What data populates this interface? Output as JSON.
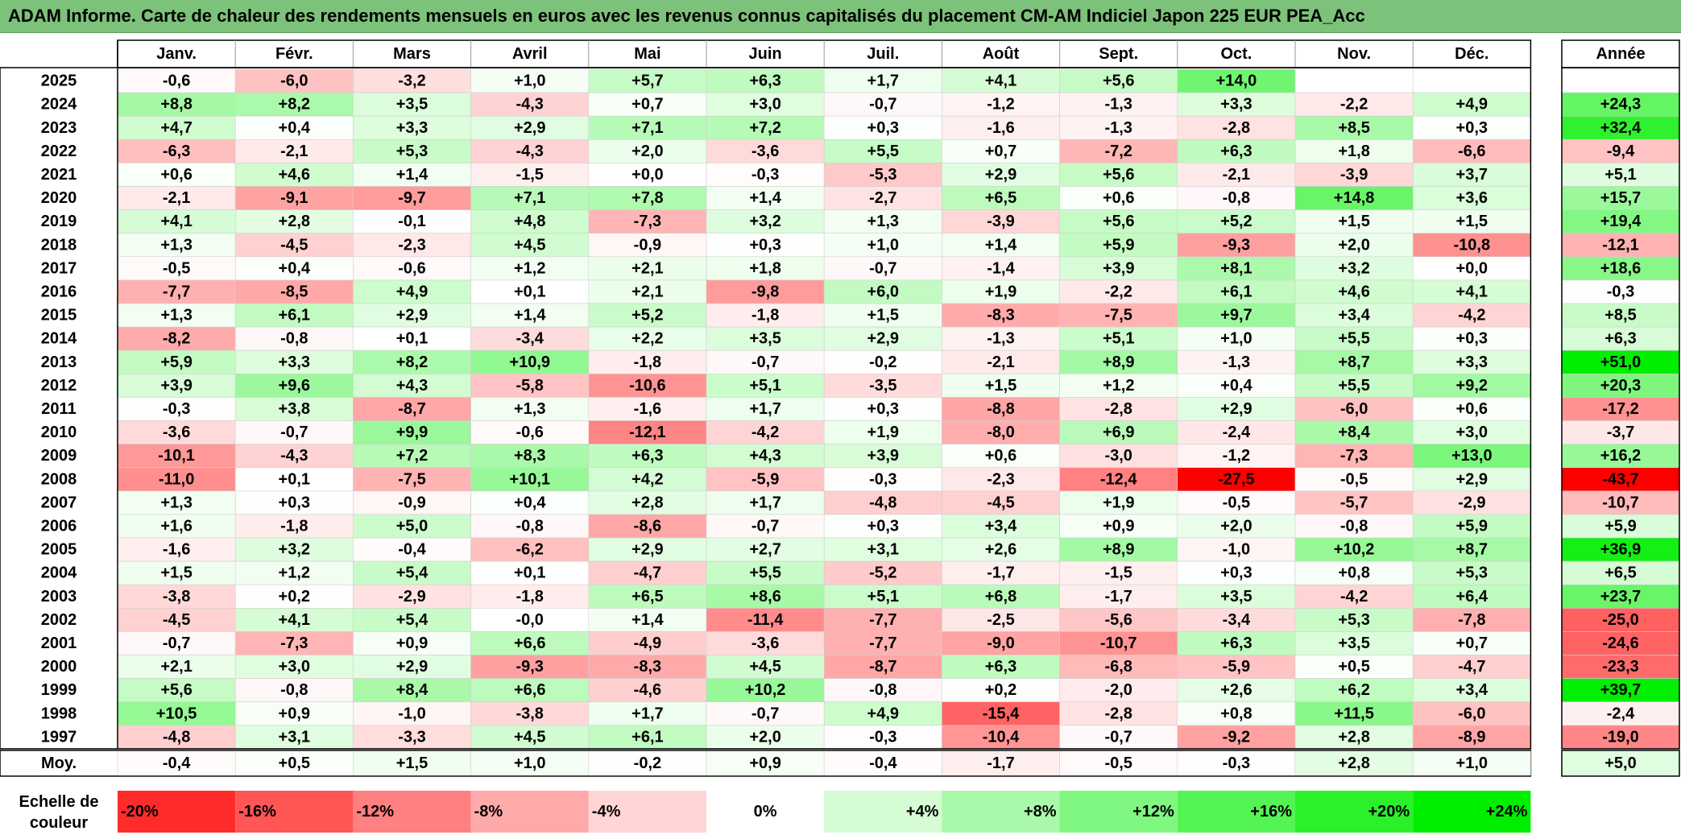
{
  "title": "ADAM Informe. Carte de chaleur des rendements mensuels en euros avec les revenus connus capitalisés du placement CM-AM Indiciel Japon 225 EUR PEA_Acc",
  "chart_data": {
    "type": "heatmap",
    "months": [
      "Janv.",
      "Févr.",
      "Mars",
      "Avril",
      "Mai",
      "Juin",
      "Juil.",
      "Août",
      "Sept.",
      "Oct.",
      "Nov.",
      "Déc."
    ],
    "annual_label": "Année",
    "rows": [
      {
        "year": "2025",
        "values": [
          "-0,6",
          "-6,0",
          "-3,2",
          "+1,0",
          "+5,7",
          "+6,3",
          "+1,7",
          "+4,1",
          "+5,6",
          "+14,0",
          "",
          ""
        ],
        "annual": ""
      },
      {
        "year": "2024",
        "values": [
          "+8,8",
          "+8,2",
          "+3,5",
          "-4,3",
          "+0,7",
          "+3,0",
          "-0,7",
          "-1,2",
          "-1,3",
          "+3,3",
          "-2,2",
          "+4,9"
        ],
        "annual": "+24,3"
      },
      {
        "year": "2023",
        "values": [
          "+4,7",
          "+0,4",
          "+3,3",
          "+2,9",
          "+7,1",
          "+7,2",
          "+0,3",
          "-1,6",
          "-1,3",
          "-2,8",
          "+8,5",
          "+0,3"
        ],
        "annual": "+32,4"
      },
      {
        "year": "2022",
        "values": [
          "-6,3",
          "-2,1",
          "+5,3",
          "-4,3",
          "+2,0",
          "-3,6",
          "+5,5",
          "+0,7",
          "-7,2",
          "+6,3",
          "+1,8",
          "-6,6"
        ],
        "annual": "-9,4"
      },
      {
        "year": "2021",
        "values": [
          "+0,6",
          "+4,6",
          "+1,4",
          "-1,5",
          "+0,0",
          "-0,3",
          "-5,3",
          "+2,9",
          "+5,6",
          "-2,1",
          "-3,9",
          "+3,7"
        ],
        "annual": "+5,1"
      },
      {
        "year": "2020",
        "values": [
          "-2,1",
          "-9,1",
          "-9,7",
          "+7,1",
          "+7,8",
          "+1,4",
          "-2,7",
          "+6,5",
          "+0,6",
          "-0,8",
          "+14,8",
          "+3,6"
        ],
        "annual": "+15,7"
      },
      {
        "year": "2019",
        "values": [
          "+4,1",
          "+2,8",
          "-0,1",
          "+4,8",
          "-7,3",
          "+3,2",
          "+1,3",
          "-3,9",
          "+5,6",
          "+5,2",
          "+1,5",
          "+1,5"
        ],
        "annual": "+19,4"
      },
      {
        "year": "2018",
        "values": [
          "+1,3",
          "-4,5",
          "-2,3",
          "+4,5",
          "-0,9",
          "+0,3",
          "+1,0",
          "+1,4",
          "+5,9",
          "-9,3",
          "+2,0",
          "-10,8"
        ],
        "annual": "-12,1"
      },
      {
        "year": "2017",
        "values": [
          "-0,5",
          "+0,4",
          "-0,6",
          "+1,2",
          "+2,1",
          "+1,8",
          "-0,7",
          "-1,4",
          "+3,9",
          "+8,1",
          "+3,2",
          "+0,0"
        ],
        "annual": "+18,6"
      },
      {
        "year": "2016",
        "values": [
          "-7,7",
          "-8,5",
          "+4,9",
          "+0,1",
          "+2,1",
          "-9,8",
          "+6,0",
          "+1,9",
          "-2,2",
          "+6,1",
          "+4,6",
          "+4,1"
        ],
        "annual": "-0,3"
      },
      {
        "year": "2015",
        "values": [
          "+1,3",
          "+6,1",
          "+2,9",
          "+1,4",
          "+5,2",
          "-1,8",
          "+1,5",
          "-8,3",
          "-7,5",
          "+9,7",
          "+3,4",
          "-4,2"
        ],
        "annual": "+8,5"
      },
      {
        "year": "2014",
        "values": [
          "-8,2",
          "-0,8",
          "+0,1",
          "-3,4",
          "+2,2",
          "+3,5",
          "+2,9",
          "-1,3",
          "+5,1",
          "+1,0",
          "+5,5",
          "+0,3"
        ],
        "annual": "+6,3"
      },
      {
        "year": "2013",
        "values": [
          "+5,9",
          "+3,3",
          "+8,2",
          "+10,9",
          "-1,8",
          "-0,7",
          "-0,2",
          "-2,1",
          "+8,9",
          "-1,3",
          "+8,7",
          "+3,3"
        ],
        "annual": "+51,0"
      },
      {
        "year": "2012",
        "values": [
          "+3,9",
          "+9,6",
          "+4,3",
          "-5,8",
          "-10,6",
          "+5,1",
          "-3,5",
          "+1,5",
          "+1,2",
          "+0,4",
          "+5,5",
          "+9,2"
        ],
        "annual": "+20,3"
      },
      {
        "year": "2011",
        "values": [
          "-0,3",
          "+3,8",
          "-8,7",
          "+1,3",
          "-1,6",
          "+1,7",
          "+0,3",
          "-8,8",
          "-2,8",
          "+2,9",
          "-6,0",
          "+0,6"
        ],
        "annual": "-17,2"
      },
      {
        "year": "2010",
        "values": [
          "-3,6",
          "-0,7",
          "+9,9",
          "-0,6",
          "-12,1",
          "-4,2",
          "+1,9",
          "-8,0",
          "+6,9",
          "-2,4",
          "+8,4",
          "+3,0"
        ],
        "annual": "-3,7"
      },
      {
        "year": "2009",
        "values": [
          "-10,1",
          "-4,3",
          "+7,2",
          "+8,3",
          "+6,3",
          "+4,3",
          "+3,9",
          "+0,6",
          "-3,0",
          "-1,2",
          "-7,3",
          "+13,0"
        ],
        "annual": "+16,2"
      },
      {
        "year": "2008",
        "values": [
          "-11,0",
          "+0,1",
          "-7,5",
          "+10,1",
          "+4,2",
          "-5,9",
          "-0,3",
          "-2,3",
          "-12,4",
          "-27,5",
          "-0,5",
          "+2,9"
        ],
        "annual": "-43,7"
      },
      {
        "year": "2007",
        "values": [
          "+1,3",
          "+0,3",
          "-0,9",
          "+0,4",
          "+2,8",
          "+1,7",
          "-4,8",
          "-4,5",
          "+1,9",
          "-0,5",
          "-5,7",
          "-2,9"
        ],
        "annual": "-10,7"
      },
      {
        "year": "2006",
        "values": [
          "+1,6",
          "-1,8",
          "+5,0",
          "-0,8",
          "-8,6",
          "-0,7",
          "+0,3",
          "+3,4",
          "+0,9",
          "+2,0",
          "-0,8",
          "+5,9"
        ],
        "annual": "+5,9"
      },
      {
        "year": "2005",
        "values": [
          "-1,6",
          "+3,2",
          "-0,4",
          "-6,2",
          "+2,9",
          "+2,7",
          "+3,1",
          "+2,6",
          "+8,9",
          "-1,0",
          "+10,2",
          "+8,7"
        ],
        "annual": "+36,9"
      },
      {
        "year": "2004",
        "values": [
          "+1,5",
          "+1,2",
          "+5,4",
          "+0,1",
          "-4,7",
          "+5,5",
          "-5,2",
          "-1,7",
          "-1,5",
          "+0,3",
          "+0,8",
          "+5,3"
        ],
        "annual": "+6,5"
      },
      {
        "year": "2003",
        "values": [
          "-3,8",
          "+0,2",
          "-2,9",
          "-1,8",
          "+6,5",
          "+8,6",
          "+5,1",
          "+6,8",
          "-1,7",
          "+3,5",
          "-4,2",
          "+6,4"
        ],
        "annual": "+23,7"
      },
      {
        "year": "2002",
        "values": [
          "-4,5",
          "+4,1",
          "+5,4",
          "-0,0",
          "+1,4",
          "-11,4",
          "-7,7",
          "-2,5",
          "-5,6",
          "-3,4",
          "+5,3",
          "-7,8"
        ],
        "annual": "-25,0"
      },
      {
        "year": "2001",
        "values": [
          "-0,7",
          "-7,3",
          "+0,9",
          "+6,6",
          "-4,9",
          "-3,6",
          "-7,7",
          "-9,0",
          "-10,7",
          "+6,3",
          "+3,5",
          "+0,7"
        ],
        "annual": "-24,6"
      },
      {
        "year": "2000",
        "values": [
          "+2,1",
          "+3,0",
          "+2,9",
          "-9,3",
          "-8,3",
          "+4,5",
          "-8,7",
          "+6,3",
          "-6,8",
          "-5,9",
          "+0,5",
          "-4,7"
        ],
        "annual": "-23,3"
      },
      {
        "year": "1999",
        "values": [
          "+5,6",
          "-0,8",
          "+8,4",
          "+6,6",
          "-4,6",
          "+10,2",
          "-0,8",
          "+0,2",
          "-2,0",
          "+2,6",
          "+6,2",
          "+3,4"
        ],
        "annual": "+39,7"
      },
      {
        "year": "1998",
        "values": [
          "+10,5",
          "+0,9",
          "-1,0",
          "-3,8",
          "+1,7",
          "-0,7",
          "+4,9",
          "-15,4",
          "-2,8",
          "+0,8",
          "+11,5",
          "-6,0"
        ],
        "annual": "-2,4"
      },
      {
        "year": "1997",
        "values": [
          "-4,8",
          "+3,1",
          "-3,3",
          "+4,5",
          "+6,1",
          "+2,0",
          "-0,3",
          "-10,4",
          "-0,7",
          "-9,2",
          "+2,8",
          "-8,9"
        ],
        "annual": "-19,0"
      }
    ],
    "average": {
      "label": "Moy.",
      "values": [
        "-0,4",
        "+0,5",
        "+1,5",
        "+1,0",
        "-0,2",
        "+0,9",
        "-0,4",
        "-1,7",
        "-0,5",
        "-0,3",
        "+2,8",
        "+1,0"
      ],
      "annual": "+5,0"
    },
    "scale": {
      "label_line1": "Echelle de",
      "label_line2": "couleur",
      "stops": [
        "-20%",
        "-16%",
        "-12%",
        "-8%",
        "-4%",
        "0%",
        "+4%",
        "+8%",
        "+12%",
        "+16%",
        "+20%",
        "+24%"
      ],
      "stop_values": [
        -20,
        -16,
        -12,
        -8,
        -4,
        0,
        4,
        8,
        12,
        16,
        20,
        24
      ]
    },
    "colors": {
      "negative": "#ff0000",
      "positive": "#00ee00",
      "neutral": "#ffffff",
      "title_bg": "#7dc27a"
    }
  }
}
